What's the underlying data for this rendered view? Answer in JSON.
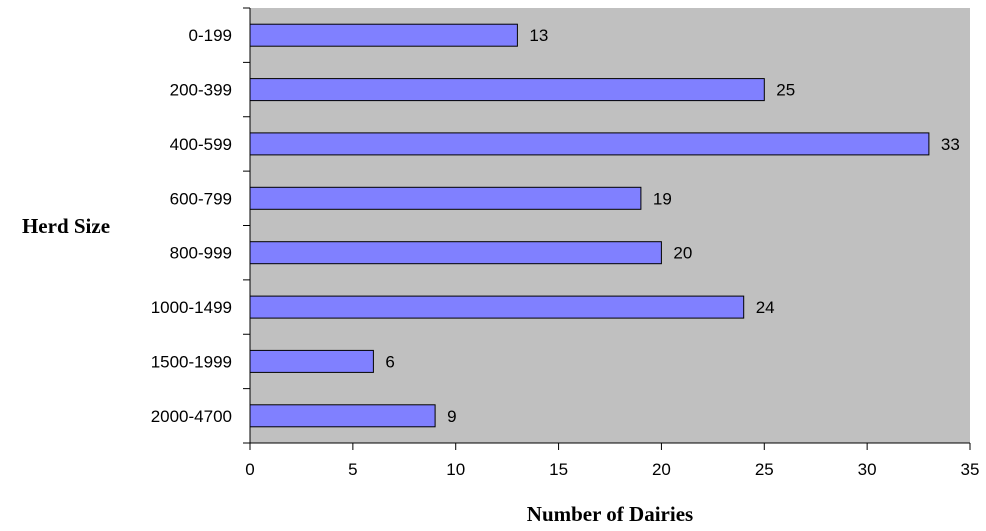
{
  "chart_data": {
    "type": "bar",
    "orientation": "horizontal",
    "title": "",
    "xlabel": "Number of Dairies",
    "ylabel": "Herd Size",
    "categories": [
      "0-199",
      "200-399",
      "400-599",
      "600-799",
      "800-999",
      "1000-1499",
      "1500-1999",
      "2000-4700"
    ],
    "values": [
      13,
      25,
      33,
      19,
      20,
      24,
      6,
      9
    ],
    "data_labels": [
      "13",
      "25",
      "33",
      "19",
      "20",
      "24",
      "6",
      "9"
    ],
    "xlim": [
      0,
      35
    ],
    "x_ticks": [
      "0",
      "5",
      "10",
      "15",
      "20",
      "25",
      "30",
      "35"
    ],
    "grid": false,
    "legend": "none",
    "colors": {
      "plot_background": "#c0c0c0",
      "bar_fill": "#8080ff",
      "bar_stroke": "#000000"
    }
  }
}
